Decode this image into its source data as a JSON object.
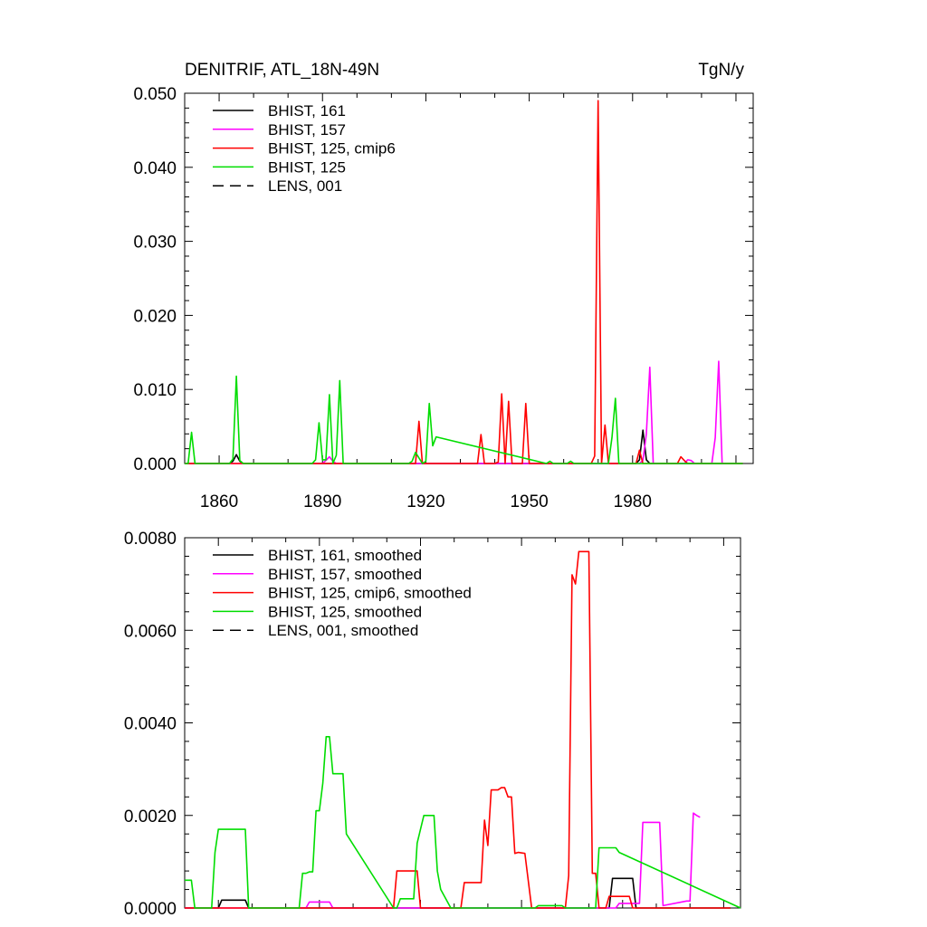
{
  "chart_data": [
    {
      "type": "line",
      "title": "DENITRIF, ATL_18N-49N",
      "units": "TgN/y",
      "xlim": [
        1850,
        2015
      ],
      "ylim": [
        0,
        0.05
      ],
      "yticks": [
        0.0,
        0.01,
        0.02,
        0.03,
        0.04,
        0.05
      ],
      "ytick_labels": [
        "0.000",
        "0.010",
        "0.020",
        "0.030",
        "0.040",
        "0.050"
      ],
      "xticks": [
        1860,
        1890,
        1920,
        1950,
        1980
      ],
      "xtick_labels": [
        "1860",
        "1890",
        "1920",
        "1950",
        "1980"
      ],
      "legend_position": "top-left",
      "series": [
        {
          "name": "BHIST, 161",
          "color": "#000000",
          "dash": false,
          "x": [
            1850,
            1863,
            1864,
            1865,
            1866,
            1867,
            1981,
            1982,
            1983,
            1984,
            1985,
            2012
          ],
          "y": [
            0,
            0,
            0.0003,
            0.0012,
            0.0003,
            0,
            0,
            0.0005,
            0.0045,
            0.0005,
            0,
            0
          ]
        },
        {
          "name": "BHIST, 157",
          "color": "#ff00ff",
          "dash": false,
          "x": [
            1850,
            1890,
            1891,
            1892,
            1893,
            1894,
            1982,
            1983,
            1984,
            1985,
            1986,
            1995,
            1996,
            1997,
            1998,
            2003,
            2004,
            2005,
            2006,
            2012
          ],
          "y": [
            0,
            0,
            0.0004,
            0.0009,
            0.0003,
            0,
            0,
            0.0004,
            0.004,
            0.013,
            0,
            0,
            0.0005,
            0.0004,
            0,
            0,
            0.0035,
            0.0138,
            0,
            0
          ]
        },
        {
          "name": "BHIST, 125, cmip6",
          "color": "#ff0000",
          "dash": false,
          "x": [
            1850,
            1917,
            1918,
            1919,
            1935,
            1936,
            1937,
            1940,
            1941,
            1942,
            1943,
            1944,
            1945,
            1946,
            1948,
            1949,
            1950,
            1968,
            1969,
            1970,
            1971,
            1972,
            1973,
            1974,
            1981,
            1982,
            1983,
            1993,
            1994,
            1995,
            1996,
            2012
          ],
          "y": [
            0,
            0,
            0.0057,
            0,
            0,
            0.0039,
            0,
            0,
            0.0002,
            0.0094,
            0,
            0.0084,
            0,
            0,
            0,
            0.0081,
            0,
            0,
            0.001,
            0.049,
            0,
            0.0052,
            0,
            0,
            0,
            0.0018,
            0,
            0,
            0.0009,
            0.0004,
            0,
            0
          ]
        },
        {
          "name": "BHIST, 125",
          "color": "#00dd00",
          "dash": false,
          "x": [
            1850,
            1851,
            1852,
            1853,
            1863,
            1864,
            1865,
            1866,
            1867,
            1887,
            1888,
            1889,
            1890,
            1891,
            1892,
            1893,
            1894,
            1895,
            1896,
            1915,
            1916,
            1917,
            1919,
            1920,
            1921,
            1922,
            1923,
            1955,
            1956,
            1957,
            1961,
            1962,
            1963,
            1973,
            1974,
            1975,
            1976,
            2012
          ],
          "y": [
            0,
            0,
            0.0042,
            0,
            0,
            0.0006,
            0.0118,
            0.0004,
            0,
            0,
            0.0005,
            0.0055,
            0.0005,
            0.0005,
            0.0093,
            0,
            0.0011,
            0.0112,
            0,
            0,
            0.0003,
            0.0015,
            0,
            0.0003,
            0.0081,
            0.0024,
            0.0036,
            0,
            0.0003,
            0,
            0,
            0.0003,
            0,
            0,
            0.0035,
            0.0088,
            0,
            0
          ]
        },
        {
          "name": "LENS, 001",
          "color": "#000000",
          "dash": true,
          "x": [],
          "y": []
        }
      ]
    },
    {
      "type": "line",
      "title": "",
      "xlim": [
        1850,
        2015
      ],
      "ylim": [
        0,
        0.008
      ],
      "yticks": [
        0.0,
        0.002,
        0.004,
        0.006,
        0.008
      ],
      "ytick_labels": [
        "0.0000",
        "0.0020",
        "0.0040",
        "0.0060",
        "0.0080"
      ],
      "legend_position": "top-left",
      "series": [
        {
          "name": "BHIST, 161, smoothed",
          "color": "#000000",
          "dash": false,
          "x": [
            1850,
            1860,
            1861,
            1868,
            1869,
            1976,
            1977,
            1983,
            1984,
            2012
          ],
          "y": [
            0,
            0,
            0.00017,
            0.00017,
            0,
            0,
            0.00064,
            0.00064,
            0,
            0
          ]
        },
        {
          "name": "BHIST, 157, smoothed",
          "color": "#ff00ff",
          "dash": false,
          "x": [
            1850,
            1886,
            1887,
            1893,
            1894,
            1978,
            1979,
            1985,
            1986,
            1987,
            1988,
            1991,
            1992,
            1999,
            2000,
            2001,
            2002,
            2003
          ],
          "y": [
            0,
            0,
            0.00013,
            0.00013,
            0,
            0,
            0.0001,
            0.0001,
            0.00185,
            0.00185,
            0.00185,
            0.00185,
            5e-05,
            0.00015,
            0.00015,
            0.00205,
            0.002,
            0.00196
          ]
        },
        {
          "name": "BHIST, 125, cmip6, smoothed",
          "color": "#ff0000",
          "dash": false,
          "x": [
            1850,
            1912,
            1913,
            1919,
            1920,
            1932,
            1933,
            1938,
            1939,
            1940,
            1941,
            1943,
            1944,
            1945,
            1946,
            1947,
            1948,
            1949,
            1951,
            1953,
            1963,
            1964,
            1965,
            1966,
            1967,
            1970,
            1971,
            1972,
            1973,
            1975,
            1976,
            1977,
            1978,
            1979,
            1982,
            1983,
            1984,
            2012
          ],
          "y": [
            0,
            0,
            0.0008,
            0.0008,
            0,
            0,
            0.00055,
            0.00055,
            0.0019,
            0.00135,
            0.00255,
            0.00255,
            0.0026,
            0.0026,
            0.0024,
            0.0024,
            0.00118,
            0.0012,
            0.00118,
            0,
            0,
            0.0007,
            0.0072,
            0.007,
            0.0077,
            0.0077,
            0.00075,
            0.00075,
            0,
            0,
            0.00025,
            0.00025,
            0.00025,
            0.00025,
            0.00025,
            0,
            0,
            0
          ]
        },
        {
          "name": "BHIST, 125, smoothed",
          "color": "#00dd00",
          "dash": false,
          "x": [
            1850,
            1851,
            1852,
            1853,
            1858,
            1859,
            1860,
            1861,
            1867,
            1868,
            1869,
            1884,
            1885,
            1886,
            1887,
            1888,
            1889,
            1890,
            1891,
            1892,
            1893,
            1894,
            1895,
            1897,
            1898,
            1912,
            1913,
            1914,
            1915,
            1916,
            1917,
            1918,
            1919,
            1920,
            1921,
            1922,
            1923,
            1924,
            1925,
            1926,
            1929,
            1954,
            1955,
            1962,
            1963,
            1972,
            1973,
            1978,
            1979,
            2015
          ],
          "y": [
            0.0006,
            0.0006,
            0.0006,
            0,
            0,
            0.0012,
            0.0017,
            0.0017,
            0.0017,
            0.0017,
            0,
            0,
            0.00075,
            0.00075,
            0.00078,
            0.00078,
            0.0021,
            0.0021,
            0.0027,
            0.0037,
            0.0037,
            0.0029,
            0.0029,
            0.0029,
            0.0016,
            0,
            0,
            0.0002,
            0.0002,
            0.0002,
            0.0002,
            0.0002,
            0.0014,
            0.0017,
            0.002,
            0.002,
            0.002,
            0.002,
            0.0008,
            0.0004,
            0,
            0,
            5e-05,
            5e-05,
            0,
            0,
            0.0013,
            0.0013,
            0.0012,
            0
          ]
        },
        {
          "name": "LENS, 001, smoothed",
          "color": "#000000",
          "dash": true,
          "x": [],
          "y": []
        }
      ]
    }
  ]
}
